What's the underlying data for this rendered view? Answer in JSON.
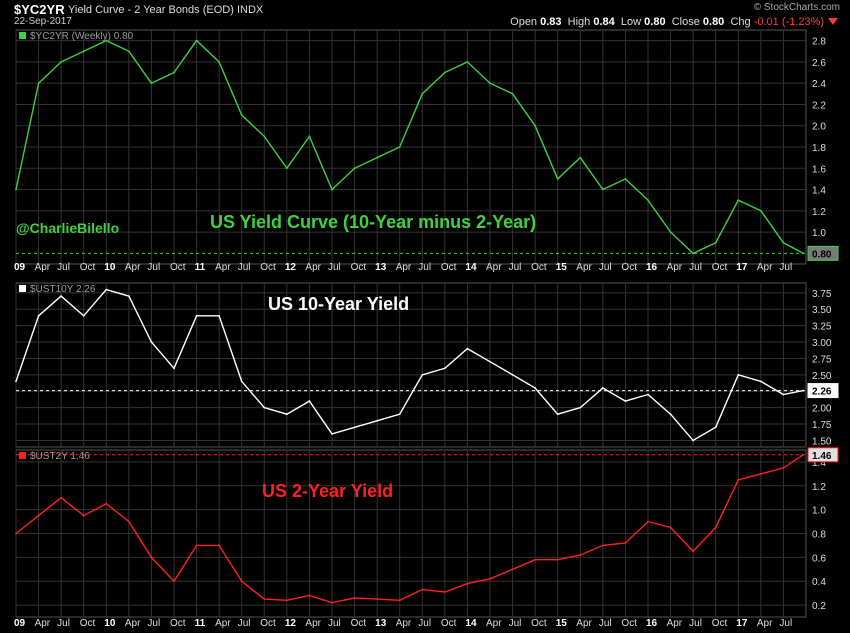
{
  "header": {
    "symbol": "$YC2YR",
    "description": "Yield Curve - 2 Year Bonds (EOD)",
    "exchange": "INDX",
    "date": "22-Sep-2017",
    "brand": "© StockCharts.com",
    "open_label": "Open",
    "open": "0.83",
    "high_label": "High",
    "high": "0.84",
    "low_label": "Low",
    "low": "0.80",
    "close_label": "Close",
    "close": "0.80",
    "chg_label": "Chg",
    "chg": "-0.01 (-1.23%)"
  },
  "handle": "@CharlieBilello",
  "colors": {
    "curve": "#3fd23f",
    "ten": "#ffffff",
    "two": "#ff2020",
    "grid": "#333333"
  },
  "chart_data": [
    {
      "type": "line",
      "title": "US Yield Curve (10-Year minus 2-Year)",
      "legend": "$YC2YR (Weekly) 0.80",
      "last_value": "0.80",
      "ylim": [
        0.7,
        2.9
      ],
      "yticks": [
        "2.8",
        "2.6",
        "2.4",
        "2.2",
        "2.0",
        "1.8",
        "1.6",
        "1.4",
        "1.2",
        "1.0"
      ],
      "x": [
        2009.0,
        2009.25,
        2009.5,
        2009.75,
        2010.0,
        2010.25,
        2010.5,
        2010.75,
        2011.0,
        2011.25,
        2011.5,
        2011.75,
        2012.0,
        2012.25,
        2012.5,
        2012.75,
        2013.0,
        2013.25,
        2013.5,
        2013.75,
        2014.0,
        2014.25,
        2014.5,
        2014.75,
        2015.0,
        2015.25,
        2015.5,
        2015.75,
        2016.0,
        2016.25,
        2016.5,
        2016.75,
        2017.0,
        2017.25,
        2017.5,
        2017.72
      ],
      "y": [
        1.4,
        2.4,
        2.6,
        2.7,
        2.8,
        2.7,
        2.4,
        2.5,
        2.8,
        2.6,
        2.1,
        1.9,
        1.6,
        1.9,
        1.4,
        1.6,
        1.7,
        1.8,
        2.3,
        2.5,
        2.6,
        2.4,
        2.3,
        2.0,
        1.5,
        1.7,
        1.4,
        1.5,
        1.3,
        1.0,
        0.8,
        0.9,
        1.3,
        1.2,
        0.9,
        0.8
      ]
    },
    {
      "type": "line",
      "title": "US 10-Year Yield",
      "legend": "$UST10Y 2.26",
      "last_value": "2.26",
      "ylim": [
        1.4,
        3.9
      ],
      "yticks": [
        "3.75",
        "3.50",
        "3.25",
        "3.00",
        "2.75",
        "2.50",
        "2.25",
        "2.00",
        "1.75",
        "1.50"
      ],
      "x": [
        2009.0,
        2009.25,
        2009.5,
        2009.75,
        2010.0,
        2010.25,
        2010.5,
        2010.75,
        2011.0,
        2011.25,
        2011.5,
        2011.75,
        2012.0,
        2012.25,
        2012.5,
        2012.75,
        2013.0,
        2013.25,
        2013.5,
        2013.75,
        2014.0,
        2014.25,
        2014.5,
        2014.75,
        2015.0,
        2015.25,
        2015.5,
        2015.75,
        2016.0,
        2016.25,
        2016.5,
        2016.75,
        2017.0,
        2017.25,
        2017.5,
        2017.72
      ],
      "y": [
        2.4,
        3.4,
        3.7,
        3.4,
        3.8,
        3.7,
        3.0,
        2.6,
        3.4,
        3.4,
        2.4,
        2.0,
        1.9,
        2.1,
        1.6,
        1.7,
        1.8,
        1.9,
        2.5,
        2.6,
        2.9,
        2.7,
        2.5,
        2.3,
        1.9,
        2.0,
        2.3,
        2.1,
        2.2,
        1.9,
        1.5,
        1.7,
        2.5,
        2.4,
        2.2,
        2.26
      ]
    },
    {
      "type": "line",
      "title": "US 2-Year Yield",
      "legend": "$UST2Y 1.46",
      "last_value": "1.46",
      "ylim": [
        0.1,
        1.5
      ],
      "yticks": [
        "1.4",
        "1.2",
        "1.0",
        "0.8",
        "0.6",
        "0.4",
        "0.2"
      ],
      "x": [
        2009.0,
        2009.25,
        2009.5,
        2009.75,
        2010.0,
        2010.25,
        2010.5,
        2010.75,
        2011.0,
        2011.25,
        2011.5,
        2011.75,
        2012.0,
        2012.25,
        2012.5,
        2012.75,
        2013.0,
        2013.25,
        2013.5,
        2013.75,
        2014.0,
        2014.25,
        2014.5,
        2014.75,
        2015.0,
        2015.25,
        2015.5,
        2015.75,
        2016.0,
        2016.25,
        2016.5,
        2016.75,
        2017.0,
        2017.25,
        2017.5,
        2017.72
      ],
      "y": [
        0.8,
        0.95,
        1.1,
        0.95,
        1.05,
        0.9,
        0.6,
        0.4,
        0.7,
        0.7,
        0.4,
        0.25,
        0.24,
        0.28,
        0.22,
        0.26,
        0.25,
        0.24,
        0.33,
        0.31,
        0.38,
        0.42,
        0.5,
        0.58,
        0.58,
        0.62,
        0.7,
        0.72,
        0.9,
        0.85,
        0.65,
        0.85,
        1.25,
        1.3,
        1.35,
        1.46
      ]
    }
  ],
  "x_axis": {
    "start": 2009.0,
    "end": 2017.75,
    "labels": [
      {
        "t": 2009.0,
        "text": "09",
        "bold": true
      },
      {
        "t": 2009.25,
        "text": "Apr"
      },
      {
        "t": 2009.5,
        "text": "Jul"
      },
      {
        "t": 2009.75,
        "text": "Oct"
      },
      {
        "t": 2010.0,
        "text": "10",
        "bold": true
      },
      {
        "t": 2010.25,
        "text": "Apr"
      },
      {
        "t": 2010.5,
        "text": "Jul"
      },
      {
        "t": 2010.75,
        "text": "Oct"
      },
      {
        "t": 2011.0,
        "text": "11",
        "bold": true
      },
      {
        "t": 2011.25,
        "text": "Apr"
      },
      {
        "t": 2011.5,
        "text": "Jul"
      },
      {
        "t": 2011.75,
        "text": "Oct"
      },
      {
        "t": 2012.0,
        "text": "12",
        "bold": true
      },
      {
        "t": 2012.25,
        "text": "Apr"
      },
      {
        "t": 2012.5,
        "text": "Jul"
      },
      {
        "t": 2012.75,
        "text": "Oct"
      },
      {
        "t": 2013.0,
        "text": "13",
        "bold": true
      },
      {
        "t": 2013.25,
        "text": "Apr"
      },
      {
        "t": 2013.5,
        "text": "Jul"
      },
      {
        "t": 2013.75,
        "text": "Oct"
      },
      {
        "t": 2014.0,
        "text": "14",
        "bold": true
      },
      {
        "t": 2014.25,
        "text": "Apr"
      },
      {
        "t": 2014.5,
        "text": "Jul"
      },
      {
        "t": 2014.75,
        "text": "Oct"
      },
      {
        "t": 2015.0,
        "text": "15",
        "bold": true
      },
      {
        "t": 2015.25,
        "text": "Apr"
      },
      {
        "t": 2015.5,
        "text": "Jul"
      },
      {
        "t": 2015.75,
        "text": "Oct"
      },
      {
        "t": 2016.0,
        "text": "16",
        "bold": true
      },
      {
        "t": 2016.25,
        "text": "Apr"
      },
      {
        "t": 2016.5,
        "text": "Jul"
      },
      {
        "t": 2016.75,
        "text": "Oct"
      },
      {
        "t": 2017.0,
        "text": "17",
        "bold": true
      },
      {
        "t": 2017.25,
        "text": "Apr"
      },
      {
        "t": 2017.5,
        "text": "Jul"
      }
    ]
  }
}
